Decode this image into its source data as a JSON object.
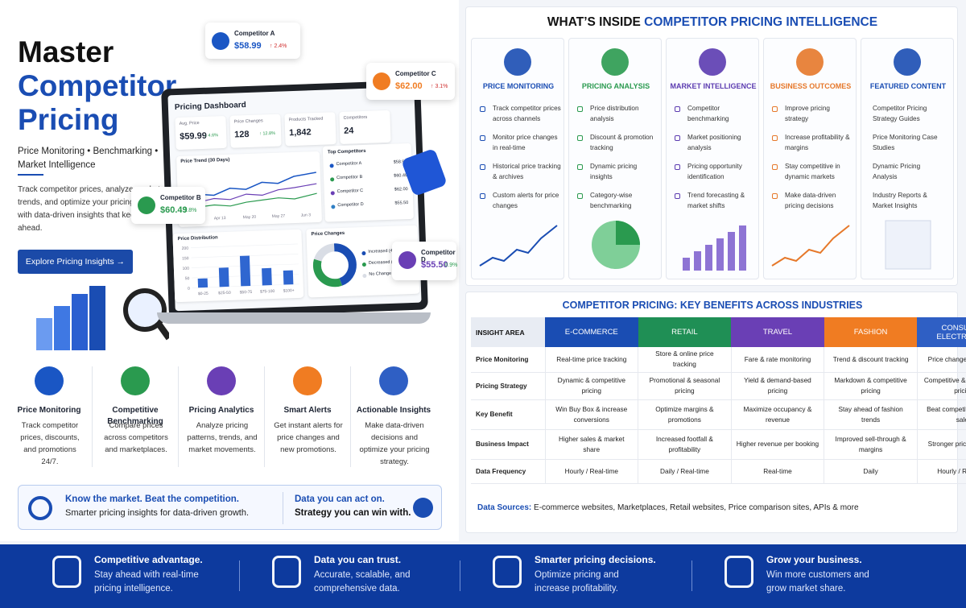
{
  "hero": {
    "title_line1": "Master",
    "title_line2": "Competitor",
    "title_line3": "Pricing",
    "subtitle": "Price Monitoring • Benchmarking • Market Intelligence",
    "description": "Track competitor prices, analyze market trends, and optimize your pricing strategy with data-driven insights that keep you ahead.",
    "button": "Explore Pricing Insights →"
  },
  "dashboard": {
    "title": "Pricing Dashboard",
    "stats": [
      {
        "label": "Avg. Price",
        "value": "$59.99",
        "change": "↓ 4.6%"
      },
      {
        "label": "Price Changes",
        "value": "128",
        "change": "↑ 12.8%"
      },
      {
        "label": "Products Tracked",
        "value": "1,842"
      },
      {
        "label": "Competitors",
        "value": "24"
      }
    ],
    "trend_title": "Price Trend (30 Days)",
    "trend_x_labels": [
      "Apr 6",
      "Apr 13",
      "May 20",
      "May 27",
      "Jun 3"
    ],
    "top_title": "Top Competitors",
    "top": [
      {
        "name": "Competitor A",
        "price": "$58.99",
        "color": "#1a56c4"
      },
      {
        "name": "Competitor B",
        "price": "$60.49",
        "color": "#2a9a4f"
      },
      {
        "name": "Competitor C",
        "price": "$62.00",
        "color": "#6a3fb5"
      },
      {
        "name": "Competitor D",
        "price": "$55.50",
        "color": "#2f7fc4"
      }
    ],
    "distribution": {
      "title": "Price Distribution",
      "categories": [
        "$0-25",
        "$25-50",
        "$50-75",
        "$75-100",
        "$100+"
      ],
      "values": [
        45,
        95,
        150,
        85,
        70
      ],
      "ylim": [
        0,
        200
      ],
      "yticks": [
        0,
        50,
        100,
        150,
        200
      ],
      "color": "#2f66d0"
    },
    "changes": {
      "title": "Price Changes",
      "labels": [
        "Increased (45%)",
        "Decreased (35%)",
        "No Change (20%)"
      ],
      "values": [
        45,
        35,
        20
      ],
      "colors": [
        "#1a4db3",
        "#2a9a4f",
        "#d9dde5"
      ]
    }
  },
  "competitor_cards": [
    {
      "name": "Competitor A",
      "price": "$58.99",
      "change": "↑ 2.4%",
      "color": "#1a56c4"
    },
    {
      "name": "Competitor C",
      "price": "$62.00",
      "change": "↑ 3.1%",
      "color": "#f07c22"
    },
    {
      "name": "Competitor B",
      "price": "$60.49",
      "change": "↓ 1.8%",
      "color": "#2a9a4f"
    },
    {
      "name": "Competitor D",
      "price": "$55.50",
      "change": "↓ 0.9%",
      "color": "#6a3fb5"
    }
  ],
  "features": [
    {
      "title": "Price Monitoring",
      "text": "Track competitor prices, discounts, and promotions 24/7."
    },
    {
      "title": "Competitive Benchmarking",
      "text": "Compare prices across competitors and marketplaces."
    },
    {
      "title": "Pricing Analytics",
      "text": "Analyze pricing patterns, trends, and market movements."
    },
    {
      "title": "Smart Alerts",
      "text": "Get instant alerts for price changes and new promotions."
    },
    {
      "title": "Actionable Insights",
      "text": "Make data-driven decisions and optimize your pricing strategy."
    }
  ],
  "banner": {
    "left_title": "Know the market. Beat the competition.",
    "left_text": "Smarter pricing insights for data-driven growth.",
    "right_line1": "Data you can act on.",
    "right_line2": "Strategy you can win with."
  },
  "whats_inside": {
    "title_prefix": "WHAT’S INSIDE",
    "title_highlight": "COMPETITOR PRICING INTELLIGENCE",
    "columns": [
      {
        "heading": "PRICE MONITORING",
        "items": [
          "Track competitor prices across channels",
          "Monitor price changes in real-time",
          "Historical price tracking & archives",
          "Custom alerts for price changes"
        ]
      },
      {
        "heading": "PRICING ANALYSIS",
        "items": [
          "Price distribution analysis",
          "Discount & promotion tracking",
          "Dynamic pricing insights",
          "Category-wise benchmarking"
        ]
      },
      {
        "heading": "MARKET INTELLIGENCE",
        "items": [
          "Competitor benchmarking",
          "Market positioning analysis",
          "Pricing opportunity identification",
          "Trend forecasting & market shifts"
        ]
      },
      {
        "heading": "BUSINESS OUTCOMES",
        "items": [
          "Improve pricing strategy",
          "Increase profitability & margins",
          "Stay competitive in dynamic markets",
          "Make data-driven pricing decisions"
        ]
      },
      {
        "heading": "FEATURED CONTENT",
        "items": [
          "Competitor Pricing Strategy Guides",
          "Price Monitoring Case Studies",
          "Dynamic Pricing Analysis",
          "Industry Reports & Market Insights"
        ]
      }
    ]
  },
  "benefits": {
    "title": "COMPETITOR PRICING: KEY BENEFITS ACROSS INDUSTRIES",
    "header": [
      "INSIGHT AREA",
      "E-COMMERCE",
      "RETAIL",
      "TRAVEL",
      "FASHION",
      "CONSUMER ELECTRONICS"
    ],
    "rows": [
      [
        "Price Monitoring",
        "Real-time price tracking",
        "Store & online price tracking",
        "Fare & rate monitoring",
        "Trend & discount tracking",
        "Price change monitoring"
      ],
      [
        "Pricing Strategy",
        "Dynamic & competitive pricing",
        "Promotional & seasonal pricing",
        "Yield & demand-based pricing",
        "Markdown & competitive pricing",
        "Competitive & value-based pricing"
      ],
      [
        "Key Benefit",
        "Win Buy Box & increase conversions",
        "Optimize margins & promotions",
        "Maximize occupancy & revenue",
        "Stay ahead of fashion trends",
        "Beat competitors & boost sales"
      ],
      [
        "Business Impact",
        "Higher sales & market share",
        "Increased footfall & profitability",
        "Higher revenue per booking",
        "Improved sell-through & margins",
        "Stronger pricing position"
      ],
      [
        "Data Frequency",
        "Hourly / Real-time",
        "Daily / Real-time",
        "Real-time",
        "Daily",
        "Hourly / Real-time"
      ]
    ],
    "sources_label": "Data Sources:",
    "sources_text": "E-commerce websites, Marketplaces, Retail websites, Price comparison sites, APIs & more"
  },
  "footer": [
    {
      "title": "Competitive advantage.",
      "text": "Stay ahead with real-time pricing intelligence."
    },
    {
      "title": "Data you can trust.",
      "text": "Accurate, scalable, and comprehensive data."
    },
    {
      "title": "Smarter pricing decisions.",
      "text": "Optimize pricing and increase profitability."
    },
    {
      "title": "Grow your business.",
      "text": "Win more customers and grow market share."
    }
  ]
}
